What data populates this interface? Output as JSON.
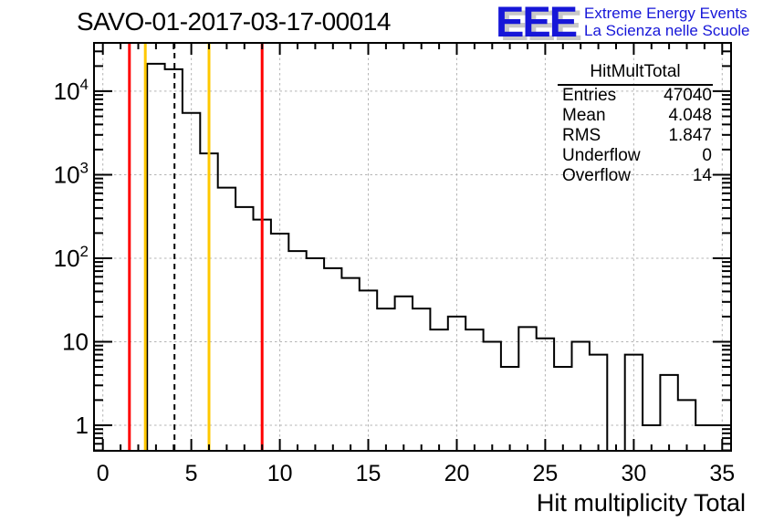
{
  "page": {
    "title": "SAVO-01-2017-03-17-00014"
  },
  "logo": {
    "acronym": "EEE",
    "line1": "Extreme Energy Events",
    "line2": "La Scienza nelle Scuole",
    "color": "#1616d8",
    "shadow_color": "#c8c8c8"
  },
  "stats": {
    "header": "HitMultTotal",
    "rows": [
      {
        "label": "Entries",
        "value": "47040"
      },
      {
        "label": "Mean",
        "value": "4.048"
      },
      {
        "label": "RMS",
        "value": "1.847"
      },
      {
        "label": "Underflow",
        "value": "0"
      },
      {
        "label": "Overflow",
        "value": "14"
      }
    ]
  },
  "chart_data": {
    "type": "bar",
    "title": "SAVO-01-2017-03-17-00014",
    "xlabel": "Hit multiplicity Total",
    "ylabel": "",
    "y_scale": "log",
    "grid": true,
    "x_range": [
      -0.5,
      35.5
    ],
    "y_range": [
      0.494,
      37900
    ],
    "x_ticks": [
      0,
      5,
      10,
      15,
      20,
      25,
      30,
      35
    ],
    "y_ticks": [
      {
        "label": "1",
        "value": 1
      },
      {
        "label": "10",
        "value": 10
      },
      {
        "label": "10",
        "sup": "2",
        "value": 100
      },
      {
        "label": "10",
        "sup": "3",
        "value": 1000
      },
      {
        "label": "10",
        "sup": "4",
        "value": 10000
      }
    ],
    "bin_centers": [
      0,
      1,
      2,
      3,
      4,
      5,
      6,
      7,
      8,
      9,
      10,
      11,
      12,
      13,
      14,
      15,
      16,
      17,
      18,
      19,
      20,
      21,
      22,
      23,
      24,
      25,
      26,
      27,
      28,
      29,
      30,
      31,
      32,
      33,
      34,
      35
    ],
    "values": [
      0,
      0,
      0,
      21300,
      18300,
      5500,
      1800,
      700,
      410,
      290,
      197,
      122,
      100,
      76,
      58,
      41,
      25,
      35,
      25,
      14,
      20,
      14,
      10,
      5,
      15,
      11,
      5,
      10,
      7,
      0,
      7,
      1,
      4,
      2,
      1,
      1
    ],
    "histogram_color": "#000000",
    "grid_color": "#b4b4b4",
    "marker_lines": [
      {
        "name": "cut-line-red-low",
        "x": 1.5,
        "color": "#ff0000",
        "style": "solid"
      },
      {
        "name": "cut-line-yellow-low",
        "x": 2.4,
        "color": "#ffc800",
        "style": "solid"
      },
      {
        "name": "mean-line",
        "x": 4.048,
        "color": "#000000",
        "style": "dashed"
      },
      {
        "name": "cut-line-yellow-high",
        "x": 6.0,
        "color": "#ffc800",
        "style": "solid"
      },
      {
        "name": "cut-line-red-high",
        "x": 9.0,
        "color": "#ff0000",
        "style": "solid"
      }
    ]
  }
}
